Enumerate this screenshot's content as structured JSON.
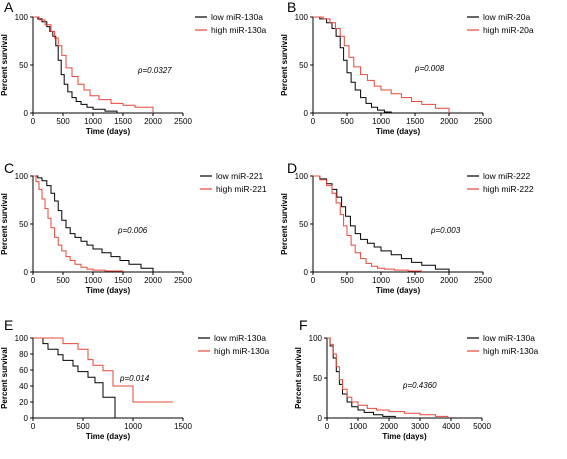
{
  "chart_data": [
    {
      "type": "line",
      "panel_label": "A",
      "xlabel": "Time (days)",
      "ylabel": "Percent survival",
      "xlim": [
        0,
        2500
      ],
      "ylim": [
        0,
        100
      ],
      "xticks": [
        0,
        500,
        1000,
        1500,
        2000,
        2500
      ],
      "yticks": [
        0,
        50,
        100
      ],
      "pvalue": "p=0.0327",
      "legend_position": "top-right",
      "series": [
        {
          "name": "low miR-130a",
          "color": "#000000",
          "x": [
            0,
            80,
            150,
            230,
            280,
            330,
            380,
            420,
            470,
            520,
            580,
            650,
            720,
            800,
            900,
            1000,
            1200,
            1400
          ],
          "y": [
            100,
            98,
            95,
            90,
            85,
            80,
            70,
            55,
            40,
            30,
            22,
            16,
            12,
            9,
            6,
            4,
            2,
            0
          ]
        },
        {
          "name": "high miR-130a",
          "color": "#e8473a",
          "x": [
            0,
            100,
            200,
            300,
            360,
            420,
            480,
            550,
            650,
            750,
            850,
            950,
            1100,
            1300,
            1500,
            1700,
            2000
          ],
          "y": [
            100,
            97,
            92,
            85,
            78,
            70,
            60,
            47,
            38,
            30,
            24,
            18,
            14,
            10,
            8,
            6,
            0
          ]
        }
      ]
    },
    {
      "type": "line",
      "panel_label": "B",
      "xlabel": "Time (days)",
      "ylabel": "Percent survival",
      "xlim": [
        0,
        2500
      ],
      "ylim": [
        0,
        100
      ],
      "xticks": [
        0,
        500,
        1000,
        1500,
        2000,
        2500
      ],
      "yticks": [
        0,
        50,
        100
      ],
      "pvalue": "p=0.008",
      "legend_position": "top-right",
      "series": [
        {
          "name": "low miR-20a",
          "color": "#000000",
          "x": [
            0,
            100,
            200,
            280,
            340,
            400,
            450,
            500,
            560,
            620,
            700,
            780,
            860,
            950,
            1050,
            1150
          ],
          "y": [
            100,
            98,
            94,
            88,
            80,
            68,
            55,
            42,
            32,
            24,
            16,
            10,
            6,
            3,
            1,
            0
          ]
        },
        {
          "name": "high miR-20a",
          "color": "#e8473a",
          "x": [
            0,
            150,
            250,
            330,
            400,
            460,
            530,
            600,
            700,
            800,
            900,
            1000,
            1150,
            1300,
            1450,
            1600,
            1800,
            2000
          ],
          "y": [
            100,
            98,
            94,
            88,
            80,
            70,
            58,
            48,
            40,
            34,
            28,
            24,
            20,
            16,
            12,
            9,
            5,
            0
          ]
        }
      ]
    },
    {
      "type": "line",
      "panel_label": "C",
      "xlabel": "Time (days)",
      "ylabel": "Percent survival",
      "xlim": [
        0,
        2500
      ],
      "ylim": [
        0,
        100
      ],
      "xticks": [
        0,
        500,
        1000,
        1500,
        2000,
        2500
      ],
      "yticks": [
        0,
        50,
        100
      ],
      "pvalue": "p=0.006",
      "legend_position": "top-right",
      "series": [
        {
          "name": "low miR-221",
          "color": "#000000",
          "x": [
            0,
            80,
            150,
            230,
            300,
            360,
            420,
            480,
            550,
            620,
            700,
            800,
            900,
            1000,
            1150,
            1300,
            1450,
            1600,
            1800,
            2000
          ],
          "y": [
            100,
            98,
            95,
            90,
            82,
            74,
            64,
            54,
            46,
            40,
            36,
            32,
            28,
            24,
            20,
            16,
            12,
            8,
            4,
            0
          ]
        },
        {
          "name": "high miR-221",
          "color": "#e8473a",
          "x": [
            0,
            50,
            100,
            150,
            200,
            250,
            300,
            360,
            420,
            480,
            550,
            620,
            700,
            800,
            900,
            1000,
            1200,
            1500
          ],
          "y": [
            100,
            94,
            86,
            76,
            66,
            56,
            46,
            36,
            28,
            22,
            16,
            12,
            8,
            5,
            3,
            2,
            1,
            0
          ]
        }
      ]
    },
    {
      "type": "line",
      "panel_label": "D",
      "xlabel": "Time (days)",
      "ylabel": "Percent survival",
      "xlim": [
        0,
        2500
      ],
      "ylim": [
        0,
        100
      ],
      "xticks": [
        0,
        500,
        1000,
        1500,
        2000,
        2500
      ],
      "yticks": [
        0,
        50,
        100
      ],
      "pvalue": "p=0.003",
      "legend_position": "top-right",
      "series": [
        {
          "name": "low miR-222",
          "color": "#000000",
          "x": [
            0,
            100,
            200,
            280,
            350,
            420,
            480,
            550,
            620,
            700,
            800,
            900,
            1000,
            1150,
            1300,
            1450,
            1600,
            1800,
            2000
          ],
          "y": [
            100,
            97,
            92,
            86,
            78,
            68,
            58,
            48,
            40,
            34,
            30,
            26,
            22,
            18,
            14,
            10,
            7,
            3,
            0
          ]
        },
        {
          "name": "high miR-222",
          "color": "#e8473a",
          "x": [
            0,
            100,
            200,
            280,
            340,
            400,
            450,
            500,
            560,
            620,
            700,
            780,
            860,
            950,
            1050,
            1200,
            1400,
            1600
          ],
          "y": [
            100,
            96,
            90,
            82,
            72,
            60,
            48,
            38,
            28,
            20,
            14,
            9,
            6,
            4,
            3,
            2,
            1,
            0
          ]
        }
      ]
    },
    {
      "type": "line",
      "panel_label": "E",
      "xlabel": "Time (days)",
      "ylabel": "Percent survival",
      "xlim": [
        0,
        1500
      ],
      "ylim": [
        0,
        100
      ],
      "xticks": [
        0,
        500,
        1000,
        1500
      ],
      "yticks": [
        0,
        20,
        40,
        60,
        80,
        100
      ],
      "pvalue": "p=0.014",
      "legend_position": "top-right",
      "series": [
        {
          "name": "low miR-130a",
          "color": "#000000",
          "x": [
            0,
            100,
            150,
            250,
            300,
            400,
            450,
            550,
            620,
            700,
            820
          ],
          "y": [
            100,
            93,
            86,
            79,
            72,
            65,
            58,
            51,
            44,
            26,
            0
          ]
        },
        {
          "name": "high miR-130a",
          "color": "#e8473a",
          "x": [
            0,
            300,
            450,
            550,
            600,
            700,
            800,
            1000,
            1050,
            1400
          ],
          "y": [
            100,
            93,
            86,
            73,
            66,
            59,
            40,
            20,
            20,
            20
          ]
        }
      ]
    },
    {
      "type": "line",
      "panel_label": "F",
      "xlabel": "Time (days)",
      "ylabel": "Percent survival",
      "xlim": [
        0,
        5000
      ],
      "ylim": [
        0,
        100
      ],
      "xticks": [
        0,
        1000,
        2000,
        3000,
        4000,
        5000
      ],
      "yticks": [
        0,
        50,
        100
      ],
      "pvalue": "p=0.4360",
      "legend_position": "top-right",
      "series": [
        {
          "name": "low miR-130a",
          "color": "#000000",
          "x": [
            0,
            100,
            200,
            300,
            400,
            500,
            650,
            800,
            1000,
            1200,
            1500,
            1800,
            2200
          ],
          "y": [
            100,
            90,
            75,
            58,
            42,
            30,
            20,
            14,
            10,
            7,
            4,
            2,
            0
          ]
        },
        {
          "name": "high miR-130a",
          "color": "#e8473a",
          "x": [
            0,
            100,
            200,
            300,
            400,
            500,
            650,
            800,
            1000,
            1300,
            1600,
            2000,
            2500,
            3000,
            3500,
            3900
          ],
          "y": [
            100,
            92,
            80,
            64,
            48,
            36,
            26,
            20,
            16,
            12,
            10,
            8,
            6,
            4,
            2,
            0
          ]
        }
      ]
    }
  ]
}
